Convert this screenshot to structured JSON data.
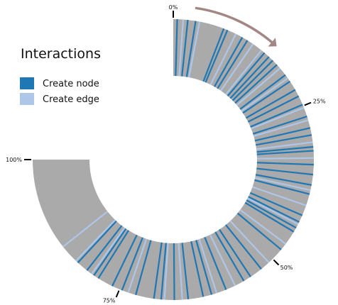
{
  "chart_data": {
    "type": "radial-timeline",
    "title": "",
    "legend": {
      "title": "Interactions",
      "entries": [
        {
          "name": "Create node",
          "color": "#1f77b4"
        },
        {
          "name": "Create edge",
          "color": "#aec7e8"
        }
      ]
    },
    "track_color": "#aaaaaa",
    "arrow_color": "#a38785",
    "progress_range": [
      0,
      100
    ],
    "ticks": [
      {
        "value": 0,
        "label": "0%"
      },
      {
        "value": 25,
        "label": "25%"
      },
      {
        "value": 50,
        "label": "50%"
      },
      {
        "value": 75,
        "label": "75%"
      },
      {
        "value": 100,
        "label": "100%"
      }
    ],
    "series": [
      {
        "name": "Create node",
        "values": [
          0.6,
          2.2,
          3.4,
          7.8,
          8.4,
          10.9,
          11.8,
          15.0,
          15.9,
          16.7,
          17.6,
          19.6,
          20.8,
          22.3,
          23.4,
          24.8,
          26.7,
          28.5,
          29.6,
          31.4,
          32.0,
          34.1,
          35.6,
          37.2,
          38.6,
          42.0,
          43.1,
          44.1,
          44.8,
          48.1,
          52.3,
          54.3,
          55.5,
          58.5,
          60.8,
          62.1,
          64.4,
          66.5,
          68.5,
          69.6,
          72.4,
          74.6,
          76.2,
          78.6,
          79.4,
          80.7,
          82.5
        ]
      },
      {
        "name": "Create edge",
        "values": [
          1.5,
          4.0,
          9.8,
          12.8,
          14.4,
          18.3,
          20.2,
          25.3,
          27.3,
          30.7,
          33.1,
          38.0,
          40.4,
          43.5,
          47.0,
          50.8,
          57.0,
          60.0,
          65.3,
          68.0,
          73.6,
          79.8,
          82.9,
          85.8
        ]
      }
    ]
  }
}
